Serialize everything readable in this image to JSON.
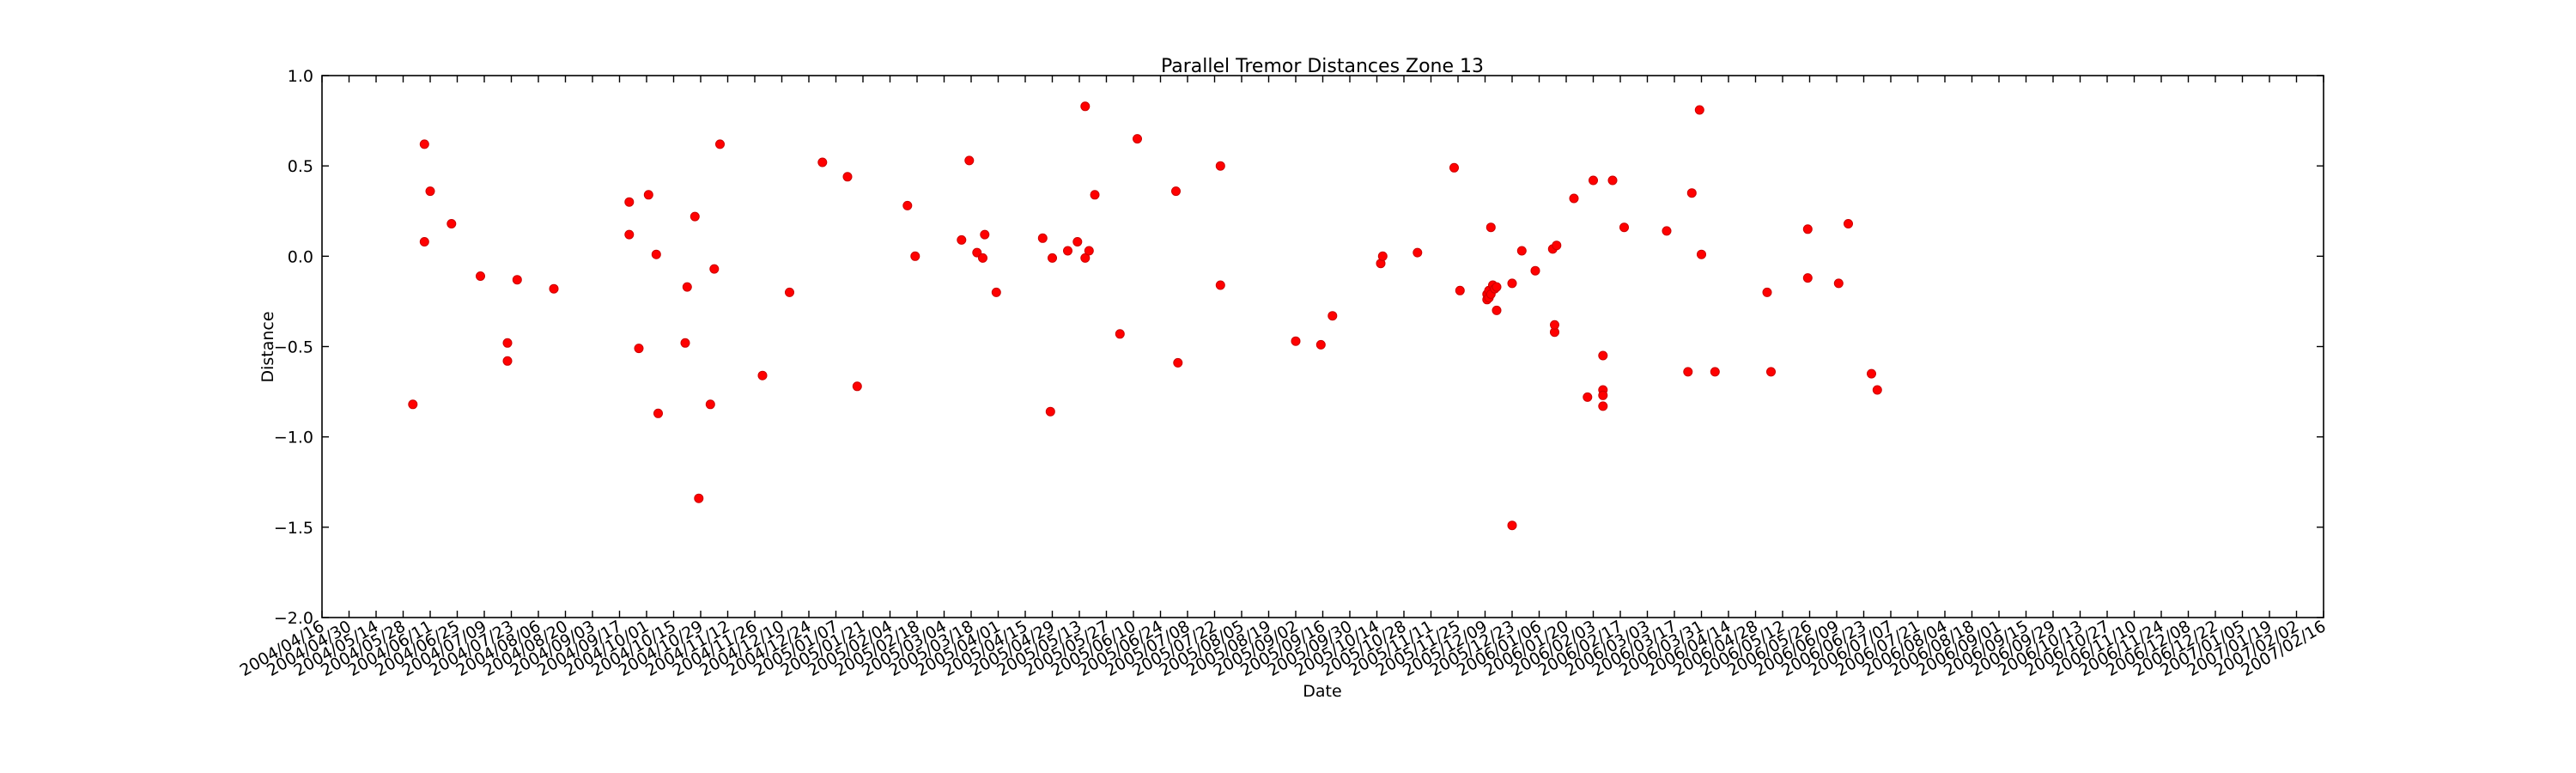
{
  "chart_data": {
    "type": "scatter",
    "title": "Parallel Tremor Distances Zone 13",
    "xlabel": "Date",
    "ylabel": "Distance",
    "xlim": [
      "2004-04-16",
      "2007-02-16"
    ],
    "ylim": [
      -2.0,
      1.0
    ],
    "grid": false,
    "marker_color": "#ff0000",
    "yticks": [
      -2.0,
      -1.5,
      -1.0,
      -0.5,
      0.0,
      0.5,
      1.0
    ],
    "ytick_labels": [
      "−2.0",
      "−1.5",
      "−1.0",
      "−0.5",
      "0.0",
      "0.5",
      "1.0"
    ],
    "xtick_labels": [
      "2004/04/16",
      "2004/04/30",
      "2004/05/14",
      "2004/05/28",
      "2004/06/11",
      "2004/06/25",
      "2004/07/09",
      "2004/07/23",
      "2004/08/06",
      "2004/08/20",
      "2004/09/03",
      "2004/09/17",
      "2004/10/01",
      "2004/10/15",
      "2004/10/29",
      "2004/11/12",
      "2004/11/26",
      "2004/12/10",
      "2004/12/24",
      "2005/01/07",
      "2005/01/21",
      "2005/02/04",
      "2005/02/18",
      "2005/03/04",
      "2005/03/18",
      "2005/04/01",
      "2005/04/15",
      "2005/04/29",
      "2005/05/13",
      "2005/05/27",
      "2005/06/10",
      "2005/06/24",
      "2005/07/08",
      "2005/07/22",
      "2005/08/05",
      "2005/08/19",
      "2005/09/02",
      "2005/09/16",
      "2005/09/30",
      "2005/10/14",
      "2005/10/28",
      "2005/11/11",
      "2005/11/25",
      "2005/12/09",
      "2005/12/23",
      "2006/01/06",
      "2006/01/20",
      "2006/02/03",
      "2006/02/17",
      "2006/03/03",
      "2006/03/17",
      "2006/03/31",
      "2006/04/14",
      "2006/04/28",
      "2006/05/12",
      "2006/05/26",
      "2006/06/09",
      "2006/06/23",
      "2006/07/07",
      "2006/07/21",
      "2006/08/04",
      "2006/08/18",
      "2006/09/01",
      "2006/09/15",
      "2006/09/29",
      "2006/10/13",
      "2006/10/27",
      "2006/11/10",
      "2006/11/24",
      "2006/12/08",
      "2006/12/22",
      "2007/01/05",
      "2007/01/19",
      "2007/02/02",
      "2007/02/16"
    ],
    "points": [
      {
        "x": "2004-06-02",
        "y": -0.82
      },
      {
        "x": "2004-06-08",
        "y": 0.62
      },
      {
        "x": "2004-06-08",
        "y": 0.08
      },
      {
        "x": "2004-06-11",
        "y": 0.36
      },
      {
        "x": "2004-06-22",
        "y": 0.18
      },
      {
        "x": "2004-07-07",
        "y": -0.11
      },
      {
        "x": "2004-07-21",
        "y": -0.48
      },
      {
        "x": "2004-07-21",
        "y": -0.58
      },
      {
        "x": "2004-07-26",
        "y": -0.13
      },
      {
        "x": "2004-08-14",
        "y": -0.18
      },
      {
        "x": "2004-09-22",
        "y": 0.3
      },
      {
        "x": "2004-09-22",
        "y": 0.12
      },
      {
        "x": "2004-09-27",
        "y": -0.51
      },
      {
        "x": "2004-10-02",
        "y": 0.34
      },
      {
        "x": "2004-10-06",
        "y": 0.01
      },
      {
        "x": "2004-10-07",
        "y": -0.87
      },
      {
        "x": "2004-10-21",
        "y": -0.48
      },
      {
        "x": "2004-10-22",
        "y": -0.17
      },
      {
        "x": "2004-10-26",
        "y": 0.22
      },
      {
        "x": "2004-10-28",
        "y": -1.34
      },
      {
        "x": "2004-11-03",
        "y": -0.82
      },
      {
        "x": "2004-11-05",
        "y": -0.07
      },
      {
        "x": "2004-11-08",
        "y": 0.62
      },
      {
        "x": "2004-11-30",
        "y": -0.66
      },
      {
        "x": "2004-12-14",
        "y": -0.2
      },
      {
        "x": "2004-12-31",
        "y": 0.52
      },
      {
        "x": "2005-01-13",
        "y": 0.44
      },
      {
        "x": "2005-01-18",
        "y": -0.72
      },
      {
        "x": "2005-02-13",
        "y": 0.28
      },
      {
        "x": "2005-02-17",
        "y": 0.0
      },
      {
        "x": "2005-03-13",
        "y": 0.09
      },
      {
        "x": "2005-03-17",
        "y": 0.53
      },
      {
        "x": "2005-03-21",
        "y": 0.02
      },
      {
        "x": "2005-03-24",
        "y": -0.01
      },
      {
        "x": "2005-03-25",
        "y": 0.12
      },
      {
        "x": "2005-03-31",
        "y": -0.2
      },
      {
        "x": "2005-04-24",
        "y": 0.1
      },
      {
        "x": "2005-04-28",
        "y": -0.86
      },
      {
        "x": "2005-04-29",
        "y": -0.01
      },
      {
        "x": "2005-05-07",
        "y": 0.03
      },
      {
        "x": "2005-05-12",
        "y": 0.08
      },
      {
        "x": "2005-05-16",
        "y": 0.83
      },
      {
        "x": "2005-05-16",
        "y": -0.01
      },
      {
        "x": "2005-05-18",
        "y": 0.03
      },
      {
        "x": "2005-05-21",
        "y": 0.34
      },
      {
        "x": "2005-06-03",
        "y": -0.43
      },
      {
        "x": "2005-06-12",
        "y": 0.65
      },
      {
        "x": "2005-07-02",
        "y": 0.36
      },
      {
        "x": "2005-07-03",
        "y": -0.59
      },
      {
        "x": "2005-07-25",
        "y": 0.5
      },
      {
        "x": "2005-07-25",
        "y": -0.16
      },
      {
        "x": "2005-09-02",
        "y": -0.47
      },
      {
        "x": "2005-09-15",
        "y": -0.49
      },
      {
        "x": "2005-09-21",
        "y": -0.33
      },
      {
        "x": "2005-10-16",
        "y": -0.04
      },
      {
        "x": "2005-10-17",
        "y": 0.0
      },
      {
        "x": "2005-11-04",
        "y": 0.02
      },
      {
        "x": "2005-11-23",
        "y": 0.49
      },
      {
        "x": "2005-11-26",
        "y": -0.19
      },
      {
        "x": "2005-12-10",
        "y": -0.21
      },
      {
        "x": "2005-12-10",
        "y": -0.24
      },
      {
        "x": "2005-12-11",
        "y": -0.19
      },
      {
        "x": "2005-12-11",
        "y": -0.23
      },
      {
        "x": "2005-12-12",
        "y": 0.16
      },
      {
        "x": "2005-12-12",
        "y": -0.21
      },
      {
        "x": "2005-12-13",
        "y": -0.16
      },
      {
        "x": "2005-12-14",
        "y": -0.18
      },
      {
        "x": "2005-12-15",
        "y": -0.3
      },
      {
        "x": "2005-12-15",
        "y": -0.17
      },
      {
        "x": "2005-12-23",
        "y": -1.49
      },
      {
        "x": "2005-12-23",
        "y": -0.15
      },
      {
        "x": "2005-12-28",
        "y": 0.03
      },
      {
        "x": "2006-01-04",
        "y": -0.08
      },
      {
        "x": "2006-01-13",
        "y": 0.04
      },
      {
        "x": "2006-01-14",
        "y": -0.42
      },
      {
        "x": "2006-01-14",
        "y": -0.38
      },
      {
        "x": "2006-01-15",
        "y": 0.06
      },
      {
        "x": "2006-01-24",
        "y": 0.32
      },
      {
        "x": "2006-01-31",
        "y": -0.78
      },
      {
        "x": "2006-02-03",
        "y": 0.42
      },
      {
        "x": "2006-02-08",
        "y": -0.55
      },
      {
        "x": "2006-02-08",
        "y": -0.74
      },
      {
        "x": "2006-02-08",
        "y": -0.77
      },
      {
        "x": "2006-02-08",
        "y": -0.83
      },
      {
        "x": "2006-02-13",
        "y": 0.42
      },
      {
        "x": "2006-02-19",
        "y": 0.16
      },
      {
        "x": "2006-03-13",
        "y": 0.14
      },
      {
        "x": "2006-03-24",
        "y": -0.64
      },
      {
        "x": "2006-03-26",
        "y": 0.35
      },
      {
        "x": "2006-03-30",
        "y": 0.81
      },
      {
        "x": "2006-03-31",
        "y": 0.01
      },
      {
        "x": "2006-04-07",
        "y": -0.64
      },
      {
        "x": "2006-05-04",
        "y": -0.2
      },
      {
        "x": "2006-05-06",
        "y": -0.64
      },
      {
        "x": "2006-05-25",
        "y": 0.15
      },
      {
        "x": "2006-05-25",
        "y": -0.12
      },
      {
        "x": "2006-06-10",
        "y": -0.15
      },
      {
        "x": "2006-06-15",
        "y": 0.18
      },
      {
        "x": "2006-06-27",
        "y": -0.65
      },
      {
        "x": "2006-06-30",
        "y": -0.74
      }
    ]
  }
}
